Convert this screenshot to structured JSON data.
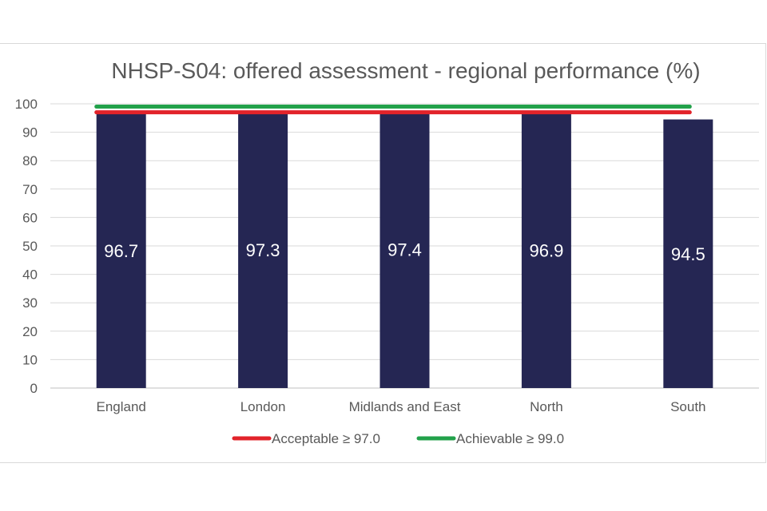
{
  "chart_data": {
    "type": "bar",
    "title": "NHSP-S04: offered assessment - regional performance (%)",
    "categories": [
      "England",
      "London",
      "Midlands and East",
      "North",
      "South"
    ],
    "values": [
      96.7,
      97.3,
      97.4,
      96.9,
      94.5
    ],
    "value_labels": [
      "96.7",
      "97.3",
      "97.4",
      "96.9",
      "94.5"
    ],
    "ylim": [
      0,
      100
    ],
    "yticks": [
      0,
      10,
      20,
      30,
      40,
      50,
      60,
      70,
      80,
      90,
      100
    ],
    "xlabel": "",
    "ylabel": "",
    "grid": true,
    "bar_color": "#252653",
    "thresholds": [
      {
        "name": "Acceptable ≥ 97.0",
        "value": 97.0,
        "color": "#e2232a"
      },
      {
        "name": "Achievable ≥ 99.0",
        "value": 99.0,
        "color": "#22a14a"
      }
    ],
    "legend_position": "bottom"
  }
}
